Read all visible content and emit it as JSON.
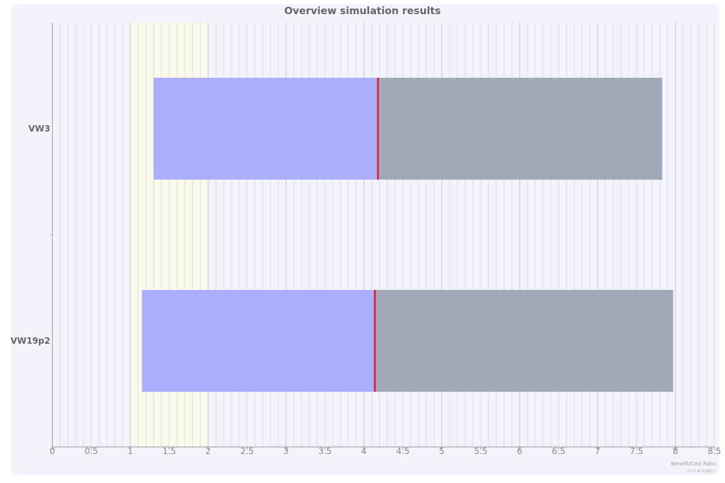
{
  "chart_data": {
    "type": "bar",
    "orientation": "horizontal",
    "title": "Overview simulation results",
    "xlabel": "Benefit/Cost Ratio",
    "footnote": "ri:r1.8 tcdi0.c",
    "xlim": [
      0,
      8.5
    ],
    "x_ticks": [
      "0",
      "0.5",
      "1",
      "1.5",
      "2",
      "2.5",
      "3",
      "3.5",
      "4",
      "4.5",
      "5",
      "5.5",
      "6",
      "6.5",
      "7",
      "7.5",
      "8",
      "8.5"
    ],
    "highlight_band": [
      1,
      2
    ],
    "categories": [
      "VW3",
      "VW19p2"
    ],
    "ranges": [
      {
        "category": "VW3",
        "min": 1.3,
        "median": 4.18,
        "max": 7.83
      },
      {
        "category": "VW19p2",
        "min": 1.15,
        "median": 4.14,
        "max": 7.97
      }
    ],
    "colors": {
      "lower_segment": "#aaaefc",
      "upper_segment": "#a1a8b8",
      "median_line": "#e8182c",
      "band": "#fafaea"
    },
    "grid": true
  }
}
